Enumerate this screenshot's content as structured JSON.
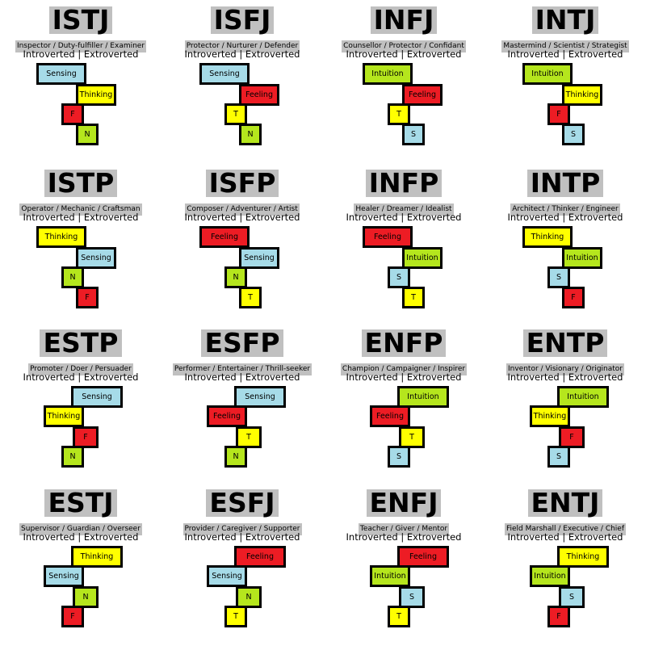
{
  "colors": {
    "Sensing": "#a6dbe8",
    "S": "#a6dbe8",
    "Thinking": "#ffff00",
    "T": "#ffff00",
    "Feeling": "#ed1c24",
    "F": "#ed1c24",
    "Intuition": "#b5e61d",
    "N": "#b5e61d",
    "header_bg": "#c0c0c0"
  },
  "axis_label": "Introverted | Extroverted",
  "types": [
    {
      "code": "ISTJ",
      "roles": "Inspector / Duty-fulfiller / Examiner",
      "functions": [
        "Sensing",
        "Thinking",
        "F",
        "N"
      ]
    },
    {
      "code": "ISFJ",
      "roles": "Protector / Nurturer / Defender",
      "functions": [
        "Sensing",
        "Feeling",
        "T",
        "N"
      ]
    },
    {
      "code": "INFJ",
      "roles": "Counsellor / Protector / Confidant",
      "functions": [
        "Intuition",
        "Feeling",
        "T",
        "S"
      ]
    },
    {
      "code": "INTJ",
      "roles": "Mastermind / Scientist / Strategist",
      "functions": [
        "Intuition",
        "Thinking",
        "F",
        "S"
      ]
    },
    {
      "code": "ISTP",
      "roles": "Operator / Mechanic / Craftsman",
      "functions": [
        "Thinking",
        "Sensing",
        "N",
        "F"
      ]
    },
    {
      "code": "ISFP",
      "roles": "Composer / Adventurer / Artist",
      "functions": [
        "Feeling",
        "Sensing",
        "N",
        "T"
      ]
    },
    {
      "code": "INFP",
      "roles": "Healer / Dreamer / Idealist",
      "functions": [
        "Feeling",
        "Intuition",
        "S",
        "T"
      ]
    },
    {
      "code": "INTP",
      "roles": "Architect / Thinker / Engineer",
      "functions": [
        "Thinking",
        "Intuition",
        "S",
        "F"
      ]
    },
    {
      "code": "ESTP",
      "roles": "Promoter / Doer / Persuader",
      "functions": [
        "Sensing",
        "Thinking",
        "F",
        "N"
      ]
    },
    {
      "code": "ESFP",
      "roles": "Performer / Entertainer / Thrill-seeker",
      "functions": [
        "Sensing",
        "Feeling",
        "T",
        "N"
      ]
    },
    {
      "code": "ENFP",
      "roles": "Champion / Campaigner / Inspirer",
      "functions": [
        "Intuition",
        "Feeling",
        "T",
        "S"
      ]
    },
    {
      "code": "ENTP",
      "roles": "Inventor / Visionary / Originator",
      "functions": [
        "Intuition",
        "Thinking",
        "F",
        "S"
      ]
    },
    {
      "code": "ESTJ",
      "roles": "Supervisor / Guardian / Overseer",
      "functions": [
        "Thinking",
        "Sensing",
        "N",
        "F"
      ]
    },
    {
      "code": "ESFJ",
      "roles": "Provider / Caregiver / Supporter",
      "functions": [
        "Feeling",
        "Sensing",
        "N",
        "T"
      ]
    },
    {
      "code": "ENFJ",
      "roles": "Teacher / Giver / Mentor",
      "functions": [
        "Feeling",
        "Intuition",
        "S",
        "T"
      ]
    },
    {
      "code": "ENTJ",
      "roles": "Field Marshall / Executive / Chief",
      "functions": [
        "Thinking",
        "Intuition",
        "S",
        "F"
      ]
    }
  ]
}
